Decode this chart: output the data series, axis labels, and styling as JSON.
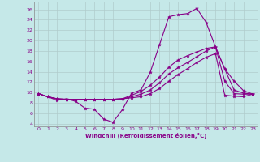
{
  "xlabel": "Windchill (Refroidissement éolien,°C)",
  "xlim": [
    -0.5,
    23.5
  ],
  "ylim": [
    3.5,
    27.5
  ],
  "yticks": [
    4,
    6,
    8,
    10,
    12,
    14,
    16,
    18,
    20,
    22,
    24,
    26
  ],
  "xticks": [
    0,
    1,
    2,
    3,
    4,
    5,
    6,
    7,
    8,
    9,
    10,
    11,
    12,
    13,
    14,
    15,
    16,
    17,
    18,
    19,
    20,
    21,
    22,
    23
  ],
  "bg_color": "#c5e8e8",
  "grid_color": "#b0cccc",
  "line_color": "#880088",
  "lines": [
    [
      9.8,
      9.2,
      8.5,
      8.8,
      8.3,
      7.0,
      6.8,
      4.9,
      4.3,
      6.7,
      9.9,
      10.5,
      13.9,
      19.2,
      24.6,
      25.0,
      25.2,
      26.2,
      23.5,
      18.8,
      14.6,
      12.2,
      10.4,
      9.7
    ],
    [
      9.8,
      9.2,
      8.8,
      8.7,
      8.7,
      8.7,
      8.7,
      8.7,
      8.7,
      8.8,
      9.5,
      10.2,
      11.4,
      13.0,
      14.9,
      16.3,
      17.1,
      17.8,
      18.5,
      18.8,
      14.5,
      10.5,
      9.9,
      9.7
    ],
    [
      9.8,
      9.2,
      8.8,
      8.7,
      8.7,
      8.7,
      8.7,
      8.7,
      8.7,
      8.8,
      9.2,
      9.7,
      10.5,
      11.9,
      13.6,
      14.8,
      15.8,
      16.9,
      18.0,
      18.8,
      12.2,
      9.8,
      9.7,
      9.7
    ],
    [
      9.8,
      9.2,
      8.8,
      8.7,
      8.7,
      8.7,
      8.7,
      8.7,
      8.7,
      8.8,
      9.0,
      9.2,
      9.8,
      10.8,
      12.2,
      13.5,
      14.6,
      15.8,
      16.8,
      17.5,
      9.5,
      9.3,
      9.2,
      9.7
    ]
  ]
}
